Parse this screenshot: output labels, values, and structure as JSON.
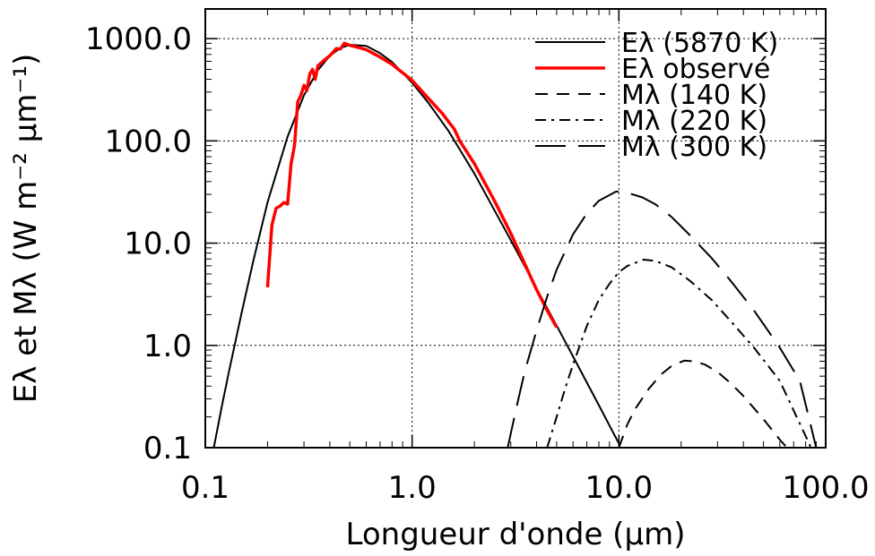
{
  "chart_data": {
    "type": "line",
    "xscale": "log",
    "yscale": "log",
    "xlim": [
      0.1,
      100.0
    ],
    "ylim": [
      0.1,
      2000.0
    ],
    "xlabel": "Longueur d'onde (μm)",
    "ylabel": "Eλ et Mλ (W m⁻² μm⁻¹)",
    "x_ticks": [
      "0.1",
      "1.0",
      "10.0",
      "100.0"
    ],
    "y_ticks": [
      "0.1",
      "1.0",
      "10.0",
      "100.0",
      "1000.0"
    ],
    "grid": true,
    "legend_position": "top-right",
    "series": [
      {
        "name": "Eλ (5870 K)",
        "color": "#000000",
        "dash": "solid",
        "x": [
          0.11,
          0.12,
          0.13,
          0.15,
          0.17,
          0.2,
          0.25,
          0.3,
          0.35,
          0.4,
          0.45,
          0.5,
          0.6,
          0.7,
          0.8,
          1.0,
          1.2,
          1.5,
          2.0,
          2.5,
          3.0,
          4.0,
          5.0,
          6.0,
          8.0,
          10.0
        ],
        "y": [
          0.1,
          0.25,
          0.55,
          2.1,
          6.5,
          25,
          110,
          280,
          490,
          680,
          810,
          870,
          850,
          720,
          590,
          370,
          235,
          125,
          48,
          21,
          10.7,
          3.6,
          1.56,
          0.78,
          0.26,
          0.11
        ]
      },
      {
        "name": "Eλ observé",
        "color": "#ff0000",
        "dash": "solid",
        "x": [
          0.2,
          0.21,
          0.22,
          0.23,
          0.24,
          0.25,
          0.26,
          0.27,
          0.28,
          0.29,
          0.3,
          0.31,
          0.32,
          0.33,
          0.34,
          0.35,
          0.37,
          0.4,
          0.43,
          0.45,
          0.47,
          0.5,
          0.55,
          0.6,
          0.7,
          0.8,
          1.0,
          1.2,
          1.4,
          1.6,
          1.7,
          2.0,
          2.5,
          3.0,
          3.5,
          4.0,
          4.5,
          5.0
        ],
        "y": [
          3.7,
          15,
          22,
          23,
          25,
          24,
          60,
          90,
          240,
          280,
          350,
          310,
          450,
          500,
          400,
          540,
          600,
          680,
          800,
          790,
          900,
          860,
          820,
          780,
          660,
          560,
          390,
          260,
          185,
          130,
          100,
          60,
          26,
          12.5,
          6.3,
          3.5,
          2.2,
          1.5
        ]
      },
      {
        "name": "Mλ (140 K)",
        "color": "#000000",
        "dash": "short-dash",
        "x": [
          10.0,
          11.0,
          12.0,
          14.0,
          16.0,
          18.0,
          20.7,
          23.0,
          26.0,
          30.0,
          35.0,
          40.0,
          50.0,
          60.0,
          65.0
        ],
        "y": [
          0.1,
          0.17,
          0.24,
          0.38,
          0.52,
          0.63,
          0.71,
          0.7,
          0.65,
          0.55,
          0.42,
          0.32,
          0.19,
          0.12,
          0.1
        ]
      },
      {
        "name": "Mλ (220 K)",
        "color": "#000000",
        "dash": "dash-dot",
        "x": [
          4.5,
          5.0,
          5.5,
          6.0,
          7.0,
          8.0,
          9.0,
          10.0,
          11.0,
          13.2,
          15.0,
          18.0,
          22.0,
          28.0,
          35.0,
          45.0,
          60.0,
          80.0,
          85.0
        ],
        "y": [
          0.1,
          0.2,
          0.38,
          0.65,
          1.55,
          2.8,
          4.0,
          5.2,
          6.0,
          6.9,
          6.7,
          5.8,
          4.3,
          2.8,
          1.7,
          0.95,
          0.45,
          0.13,
          0.1
        ]
      },
      {
        "name": "Mλ (300 K)",
        "color": "#000000",
        "dash": "long-dash",
        "x": [
          2.9,
          3.2,
          3.5,
          4.0,
          4.5,
          5.0,
          6.0,
          7.0,
          8.0,
          9.7,
          11.0,
          13.0,
          15.0,
          18.0,
          22.0,
          28.0,
          35.0,
          45.0,
          60.0,
          75.0,
          90.0
        ],
        "y": [
          0.1,
          0.25,
          0.55,
          1.4,
          3.0,
          5.5,
          12.2,
          19.5,
          26,
          32,
          31,
          28,
          24,
          18,
          12,
          7.2,
          4.2,
          2.2,
          0.95,
          0.45,
          0.1
        ]
      }
    ]
  }
}
